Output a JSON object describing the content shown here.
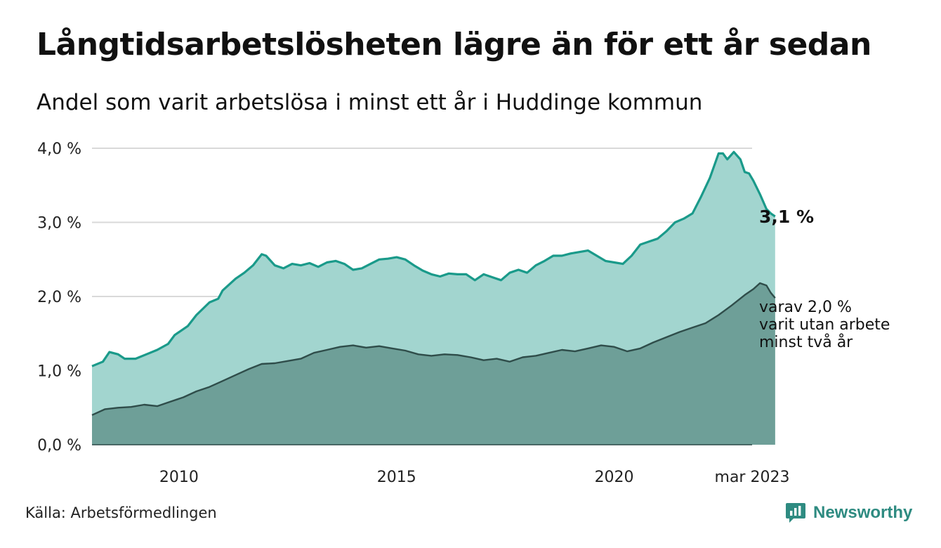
{
  "title": "Långtidsarbetslösheten lägre än för ett år sedan",
  "subtitle": "Andel som varit arbetslösa i minst ett år i Huddinge kommun",
  "source": "Källa: Arbetsförmedlingen",
  "brand": "Newsworthy",
  "colors": {
    "series1_fill": "#a2d5cf",
    "series1_line": "#1a9a8a",
    "series2_fill": "#6e9f98",
    "series2_line": "#2f4d4a",
    "grid": "#d9d9d9",
    "brand": "#2e8b81"
  },
  "chart_data": {
    "type": "area",
    "y_ticks": [
      "0,0 %",
      "1,0 %",
      "2,0 %",
      "3,0 %",
      "4,0 %"
    ],
    "x_ticks": [
      {
        "label": "2010",
        "x": 2010.0
      },
      {
        "label": "2015",
        "x": 2015.0
      },
      {
        "label": "2020",
        "x": 2020.0
      },
      {
        "label": "mar 2023",
        "x": 2023.17
      }
    ],
    "ylim": [
      0,
      4.0
    ],
    "xlim": [
      2008.0,
      2023.17
    ],
    "grid": true,
    "end_label": "3,1 %",
    "sub_label_lines": [
      "varav 2,0 %",
      "varit utan arbete",
      "minst två år"
    ],
    "series": [
      {
        "name": "minst ett år",
        "points": [
          [
            2008.0,
            1.06
          ],
          [
            2008.25,
            1.12
          ],
          [
            2008.4,
            1.25
          ],
          [
            2008.6,
            1.22
          ],
          [
            2008.75,
            1.16
          ],
          [
            2009.0,
            1.16
          ],
          [
            2009.25,
            1.22
          ],
          [
            2009.5,
            1.28
          ],
          [
            2009.75,
            1.36
          ],
          [
            2009.9,
            1.48
          ],
          [
            2010.2,
            1.6
          ],
          [
            2010.4,
            1.75
          ],
          [
            2010.7,
            1.92
          ],
          [
            2010.9,
            1.97
          ],
          [
            2011.0,
            2.08
          ],
          [
            2011.3,
            2.24
          ],
          [
            2011.5,
            2.32
          ],
          [
            2011.7,
            2.42
          ],
          [
            2011.9,
            2.57
          ],
          [
            2012.0,
            2.55
          ],
          [
            2012.2,
            2.42
          ],
          [
            2012.4,
            2.38
          ],
          [
            2012.6,
            2.44
          ],
          [
            2012.8,
            2.42
          ],
          [
            2013.0,
            2.45
          ],
          [
            2013.2,
            2.4
          ],
          [
            2013.4,
            2.46
          ],
          [
            2013.6,
            2.48
          ],
          [
            2013.8,
            2.44
          ],
          [
            2014.0,
            2.36
          ],
          [
            2014.2,
            2.38
          ],
          [
            2014.4,
            2.44
          ],
          [
            2014.6,
            2.5
          ],
          [
            2014.8,
            2.51
          ],
          [
            2015.0,
            2.53
          ],
          [
            2015.2,
            2.5
          ],
          [
            2015.4,
            2.42
          ],
          [
            2015.6,
            2.35
          ],
          [
            2015.8,
            2.3
          ],
          [
            2016.0,
            2.27
          ],
          [
            2016.2,
            2.31
          ],
          [
            2016.4,
            2.3
          ],
          [
            2016.6,
            2.3
          ],
          [
            2016.8,
            2.22
          ],
          [
            2017.0,
            2.3
          ],
          [
            2017.2,
            2.26
          ],
          [
            2017.4,
            2.22
          ],
          [
            2017.6,
            2.32
          ],
          [
            2017.8,
            2.36
          ],
          [
            2018.0,
            2.32
          ],
          [
            2018.2,
            2.42
          ],
          [
            2018.4,
            2.48
          ],
          [
            2018.6,
            2.55
          ],
          [
            2018.8,
            2.55
          ],
          [
            2019.0,
            2.58
          ],
          [
            2019.2,
            2.6
          ],
          [
            2019.4,
            2.62
          ],
          [
            2019.6,
            2.55
          ],
          [
            2019.8,
            2.48
          ],
          [
            2020.0,
            2.46
          ],
          [
            2020.2,
            2.44
          ],
          [
            2020.4,
            2.55
          ],
          [
            2020.6,
            2.7
          ],
          [
            2020.8,
            2.74
          ],
          [
            2021.0,
            2.78
          ],
          [
            2021.2,
            2.88
          ],
          [
            2021.4,
            3.0
          ],
          [
            2021.6,
            3.05
          ],
          [
            2021.8,
            3.12
          ],
          [
            2022.0,
            3.35
          ],
          [
            2022.2,
            3.6
          ],
          [
            2022.4,
            3.93
          ],
          [
            2022.5,
            3.93
          ],
          [
            2022.6,
            3.85
          ],
          [
            2022.75,
            3.95
          ],
          [
            2022.9,
            3.85
          ],
          [
            2023.0,
            3.68
          ],
          [
            2023.1,
            3.66
          ],
          [
            2023.2,
            3.56
          ],
          [
            2023.35,
            3.38
          ],
          [
            2023.5,
            3.18
          ],
          [
            2023.6,
            3.12
          ],
          [
            2023.7,
            3.08
          ]
        ]
      },
      {
        "name": "minst två år",
        "points": [
          [
            2008.0,
            0.4
          ],
          [
            2008.3,
            0.48
          ],
          [
            2008.6,
            0.5
          ],
          [
            2008.9,
            0.51
          ],
          [
            2009.2,
            0.54
          ],
          [
            2009.5,
            0.52
          ],
          [
            2009.8,
            0.58
          ],
          [
            2010.1,
            0.64
          ],
          [
            2010.4,
            0.72
          ],
          [
            2010.7,
            0.78
          ],
          [
            2011.0,
            0.86
          ],
          [
            2011.3,
            0.94
          ],
          [
            2011.6,
            1.02
          ],
          [
            2011.9,
            1.09
          ],
          [
            2012.2,
            1.1
          ],
          [
            2012.5,
            1.13
          ],
          [
            2012.8,
            1.16
          ],
          [
            2013.1,
            1.24
          ],
          [
            2013.4,
            1.28
          ],
          [
            2013.7,
            1.32
          ],
          [
            2014.0,
            1.34
          ],
          [
            2014.3,
            1.31
          ],
          [
            2014.6,
            1.33
          ],
          [
            2014.9,
            1.3
          ],
          [
            2015.2,
            1.27
          ],
          [
            2015.5,
            1.22
          ],
          [
            2015.8,
            1.2
          ],
          [
            2016.1,
            1.22
          ],
          [
            2016.4,
            1.21
          ],
          [
            2016.7,
            1.18
          ],
          [
            2017.0,
            1.14
          ],
          [
            2017.3,
            1.16
          ],
          [
            2017.6,
            1.12
          ],
          [
            2017.9,
            1.18
          ],
          [
            2018.2,
            1.2
          ],
          [
            2018.5,
            1.24
          ],
          [
            2018.8,
            1.28
          ],
          [
            2019.1,
            1.26
          ],
          [
            2019.4,
            1.3
          ],
          [
            2019.7,
            1.34
          ],
          [
            2020.0,
            1.32
          ],
          [
            2020.3,
            1.26
          ],
          [
            2020.6,
            1.3
          ],
          [
            2020.9,
            1.38
          ],
          [
            2021.2,
            1.45
          ],
          [
            2021.5,
            1.52
          ],
          [
            2021.8,
            1.58
          ],
          [
            2022.1,
            1.64
          ],
          [
            2022.4,
            1.75
          ],
          [
            2022.7,
            1.88
          ],
          [
            2023.0,
            2.02
          ],
          [
            2023.2,
            2.1
          ],
          [
            2023.35,
            2.18
          ],
          [
            2023.5,
            2.15
          ],
          [
            2023.6,
            2.05
          ],
          [
            2023.7,
            1.98
          ]
        ]
      }
    ]
  }
}
